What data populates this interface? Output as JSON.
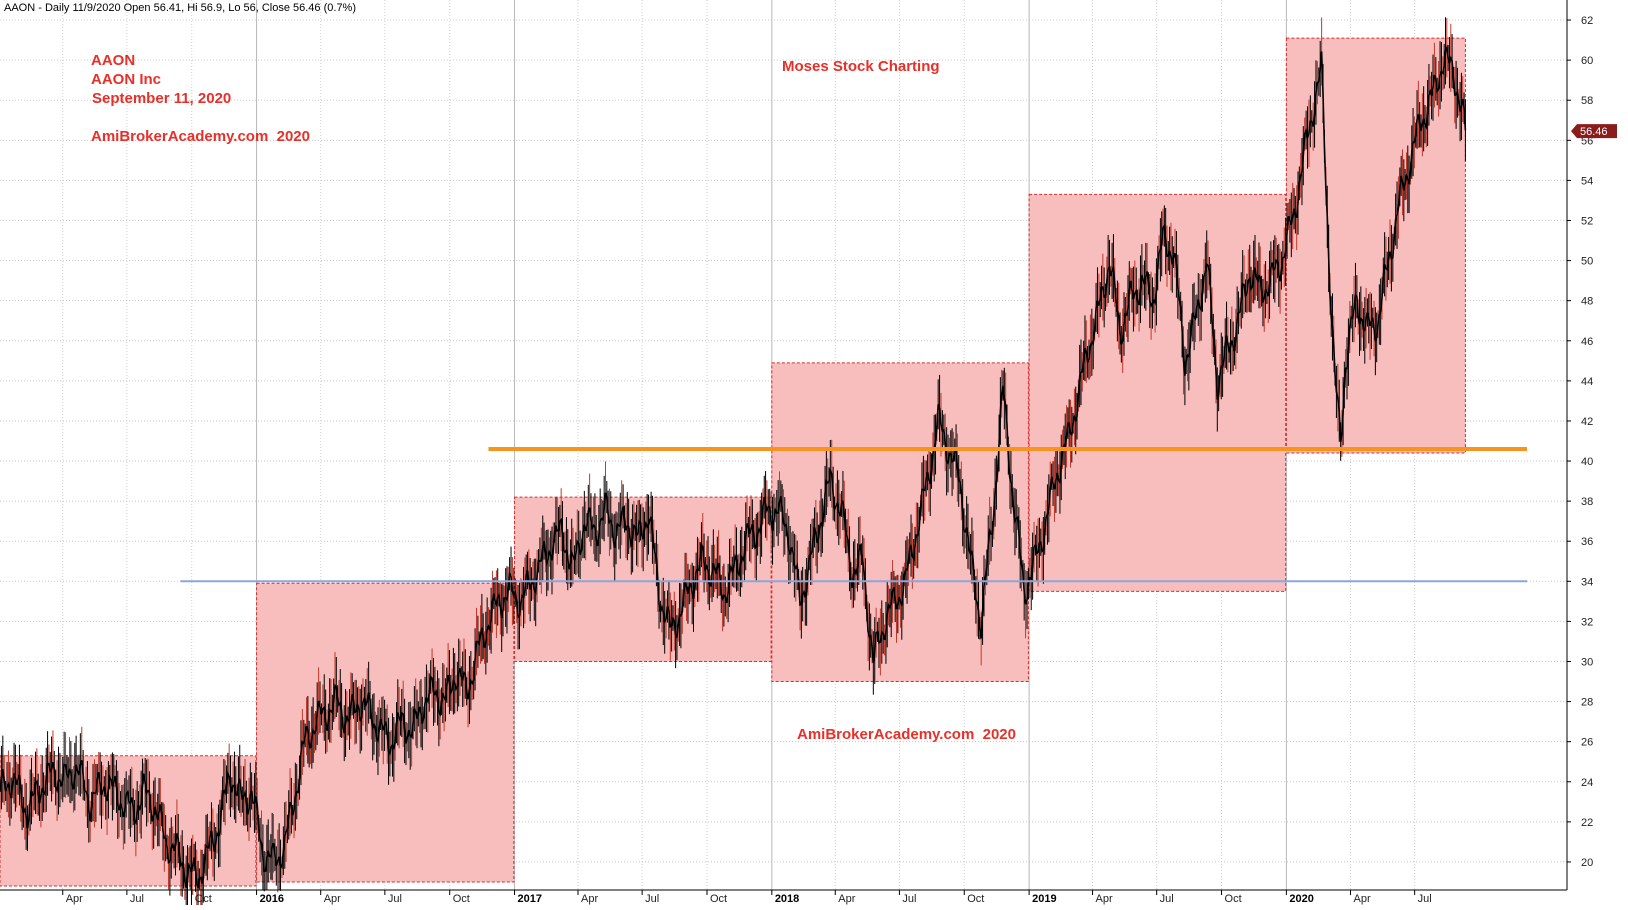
{
  "header": {
    "text": "AAON - Daily 11/9/2020 Open 56.41, Hi 56.9, Lo 56, Close 56.46 (0.7%)"
  },
  "annotations": {
    "symbol": "AAON",
    "company": "AAON Inc",
    "date": "September 11, 2020",
    "site_top": "AmiBrokerAcademy.com  2020",
    "brand": "Moses Stock Charting",
    "site_bottom": "AmiBrokerAcademy.com  2020"
  },
  "price_tag": "56.46",
  "colors": {
    "box_fill": "#f8bdbd",
    "box_border": "#d62e2e",
    "resistance": "#f7931e",
    "support": "#8aa6de",
    "annotation_text": "#e8302a",
    "candle": "#000000",
    "price_tag_bg": "#8b1c1c"
  },
  "chart_data": {
    "type": "line",
    "style": "candlestick",
    "title": "",
    "xlabel": "",
    "ylabel": "",
    "ylim": [
      18.6,
      63
    ],
    "yticks": [
      "20",
      "22",
      "24",
      "26",
      "28",
      "30",
      "32",
      "34",
      "36",
      "38",
      "40",
      "42",
      "44",
      "46",
      "48",
      "50",
      "52",
      "54",
      "56",
      "58",
      "60",
      "62"
    ],
    "ytick_values": [
      20,
      22,
      24,
      26,
      28,
      30,
      32,
      34,
      36,
      38,
      40,
      42,
      44,
      46,
      48,
      50,
      52,
      54,
      56,
      58,
      60,
      62
    ],
    "xlim": [
      "2015-01-02",
      "2020-11-09"
    ],
    "xticks": [
      {
        "label": "Apr",
        "date": "2015-04-01",
        "year": false
      },
      {
        "label": "Jul",
        "date": "2015-07-01",
        "year": false
      },
      {
        "label": "Oct",
        "date": "2015-10-01",
        "year": false
      },
      {
        "label": "2016",
        "date": "2016-01-01",
        "year": true
      },
      {
        "label": "Apr",
        "date": "2016-04-01",
        "year": false
      },
      {
        "label": "Jul",
        "date": "2016-07-01",
        "year": false
      },
      {
        "label": "Oct",
        "date": "2016-10-01",
        "year": false
      },
      {
        "label": "2017",
        "date": "2017-01-01",
        "year": true
      },
      {
        "label": "Apr",
        "date": "2017-04-01",
        "year": false
      },
      {
        "label": "Jul",
        "date": "2017-07-01",
        "year": false
      },
      {
        "label": "Oct",
        "date": "2017-10-01",
        "year": false
      },
      {
        "label": "2018",
        "date": "2018-01-01",
        "year": true
      },
      {
        "label": "Apr",
        "date": "2018-04-01",
        "year": false
      },
      {
        "label": "Jul",
        "date": "2018-07-01",
        "year": false
      },
      {
        "label": "Oct",
        "date": "2018-10-01",
        "year": false
      },
      {
        "label": "2019",
        "date": "2019-01-01",
        "year": true
      },
      {
        "label": "Apr",
        "date": "2019-04-01",
        "year": false
      },
      {
        "label": "Jul",
        "date": "2019-07-01",
        "year": false
      },
      {
        "label": "Oct",
        "date": "2019-10-01",
        "year": false
      },
      {
        "label": "2020",
        "date": "2020-01-01",
        "year": true
      },
      {
        "label": "Apr",
        "date": "2020-04-01",
        "year": false
      },
      {
        "label": "Jul",
        "date": "2020-07-01",
        "year": false
      }
    ],
    "yearly_ranges": [
      {
        "year": "2015",
        "start": "2015-01-02",
        "end": "2015-12-31",
        "low": 18.8,
        "high": 25.3
      },
      {
        "year": "2016",
        "start": "2016-01-01",
        "end": "2016-12-31",
        "low": 19.0,
        "high": 33.9
      },
      {
        "year": "2017",
        "start": "2017-01-01",
        "end": "2017-12-31",
        "low": 30.0,
        "high": 38.2
      },
      {
        "year": "2018",
        "start": "2018-01-01",
        "end": "2018-12-31",
        "low": 29.0,
        "high": 44.9
      },
      {
        "year": "2019",
        "start": "2019-01-01",
        "end": "2019-12-31",
        "low": 33.5,
        "high": 53.3
      },
      {
        "year": "2020",
        "start": "2020-01-01",
        "end": "2020-09-11",
        "low": 40.4,
        "high": 61.1
      }
    ],
    "reference_lines": [
      {
        "name": "resistance",
        "value": 40.6,
        "from": "2016-11-25",
        "to": "2020-11-09"
      },
      {
        "name": "support",
        "value": 34.0,
        "from": "2015-09-15",
        "to": "2020-11-09"
      }
    ],
    "series": [
      {
        "x": [
          "2015-01-02",
          "2015-01-20",
          "2015-02-10",
          "2015-03-01",
          "2015-03-20",
          "2015-04-05",
          "2015-04-20",
          "2015-05-10",
          "2015-06-01",
          "2015-06-20",
          "2015-07-10",
          "2015-07-25",
          "2015-08-10",
          "2015-08-25",
          "2015-09-10",
          "2015-09-25",
          "2015-10-10",
          "2015-10-25",
          "2015-11-10",
          "2015-11-25",
          "2015-12-10",
          "2015-12-25",
          "2016-01-10",
          "2016-01-25",
          "2016-02-10",
          "2016-02-25",
          "2016-03-10",
          "2016-03-25",
          "2016-04-10",
          "2016-04-25",
          "2016-05-10",
          "2016-05-25",
          "2016-06-10",
          "2016-06-25",
          "2016-07-10",
          "2016-07-25",
          "2016-08-10",
          "2016-08-25",
          "2016-09-10",
          "2016-09-25",
          "2016-10-10",
          "2016-10-25",
          "2016-11-10",
          "2016-11-25",
          "2016-12-10",
          "2016-12-25",
          "2017-01-10",
          "2017-01-25",
          "2017-02-10",
          "2017-02-25",
          "2017-03-10",
          "2017-03-25",
          "2017-04-10",
          "2017-04-25",
          "2017-05-10",
          "2017-05-25",
          "2017-06-10",
          "2017-06-25",
          "2017-07-10",
          "2017-07-25",
          "2017-08-10",
          "2017-08-25",
          "2017-09-10",
          "2017-09-25",
          "2017-10-10",
          "2017-10-25",
          "2017-11-10",
          "2017-11-25",
          "2017-12-10",
          "2017-12-25",
          "2018-01-10",
          "2018-01-25",
          "2018-02-10",
          "2018-02-25",
          "2018-03-10",
          "2018-03-25",
          "2018-04-10",
          "2018-04-25",
          "2018-05-10",
          "2018-05-25",
          "2018-06-10",
          "2018-06-25",
          "2018-07-10",
          "2018-07-25",
          "2018-08-10",
          "2018-08-25",
          "2018-09-10",
          "2018-09-25",
          "2018-10-10",
          "2018-10-25",
          "2018-11-10",
          "2018-11-25",
          "2018-12-10",
          "2018-12-25",
          "2019-01-10",
          "2019-01-25",
          "2019-02-10",
          "2019-02-25",
          "2019-03-10",
          "2019-03-25",
          "2019-04-10",
          "2019-04-25",
          "2019-05-10",
          "2019-05-25",
          "2019-06-10",
          "2019-06-25",
          "2019-07-10",
          "2019-07-25",
          "2019-08-10",
          "2019-08-25",
          "2019-09-10",
          "2019-09-25",
          "2019-10-10",
          "2019-10-25",
          "2019-11-10",
          "2019-11-25",
          "2019-12-10",
          "2019-12-25",
          "2020-01-10",
          "2020-01-25",
          "2020-02-10",
          "2020-02-20",
          "2020-03-01",
          "2020-03-10",
          "2020-03-18",
          "2020-03-25",
          "2020-04-10",
          "2020-04-25",
          "2020-05-10",
          "2020-05-25",
          "2020-06-10",
          "2020-06-25",
          "2020-07-10",
          "2020-07-25",
          "2020-08-10",
          "2020-08-25",
          "2020-09-11"
        ],
        "values": [
          23.5,
          24.2,
          22.5,
          23.8,
          24.5,
          24.0,
          24.8,
          23.0,
          24.0,
          23.2,
          22.5,
          23.5,
          22.8,
          21.0,
          20.5,
          19.5,
          19.2,
          20.5,
          22.0,
          24.5,
          23.0,
          23.5,
          20.5,
          20.0,
          20.8,
          23.5,
          26.0,
          27.0,
          27.5,
          28.0,
          27.0,
          28.0,
          27.5,
          26.5,
          26.0,
          27.0,
          26.5,
          28.0,
          28.5,
          28.0,
          29.5,
          28.5,
          30.5,
          32.0,
          33.0,
          33.5,
          33.0,
          34.0,
          35.0,
          36.0,
          36.5,
          34.5,
          37.0,
          36.5,
          37.5,
          36.5,
          37.0,
          36.0,
          37.5,
          33.5,
          31.5,
          32.5,
          34.0,
          35.0,
          34.5,
          33.5,
          34.5,
          36.0,
          36.5,
          37.5,
          37.5,
          36.5,
          33.0,
          35.0,
          37.0,
          39.0,
          37.5,
          34.5,
          35.0,
          30.0,
          32.0,
          33.0,
          34.0,
          36.5,
          39.0,
          42.0,
          40.5,
          39.0,
          35.0,
          32.0,
          37.0,
          43.5,
          38.0,
          33.5,
          35.0,
          37.0,
          39.5,
          41.0,
          43.0,
          45.5,
          47.5,
          50.0,
          46.5,
          48.0,
          49.0,
          48.0,
          51.0,
          50.5,
          45.0,
          47.0,
          50.0,
          44.0,
          45.5,
          47.0,
          49.5,
          48.5,
          49.0,
          50.0,
          52.0,
          55.0,
          58.0,
          59.5,
          50.5,
          44.0,
          41.0,
          45.0,
          48.0,
          46.5,
          47.0,
          50.0,
          53.0,
          55.0,
          57.0,
          58.0,
          60.0,
          59.5,
          56.5
        ]
      }
    ]
  }
}
